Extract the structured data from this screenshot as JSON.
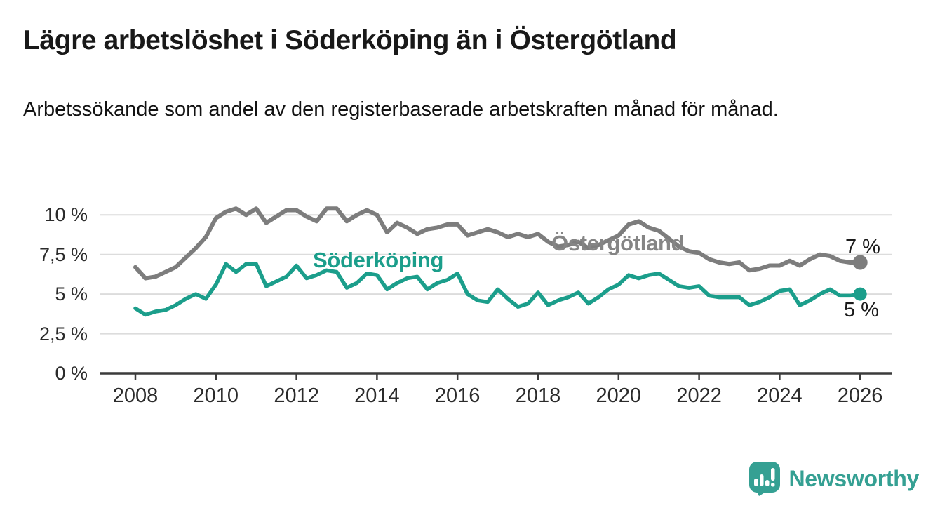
{
  "header": {
    "title": "Lägre arbetslöshet i Söderköping än i Östergötland",
    "subtitle": "Arbetssökande som andel av den registerbaserade arbetskraften månad för månad."
  },
  "chart_data": {
    "type": "line",
    "title": "Lägre arbetslöshet i Söderköping än i Östergötland",
    "subtitle": "Arbetssökande som andel av den registerbaserade arbetskraften månad för månad.",
    "unit": "%",
    "grid": true,
    "legend_position": "inline-labels",
    "x_start": 2008,
    "x_step": 0.25,
    "x_end": 2026,
    "xlim": [
      2007.1,
      2026.8
    ],
    "ylim": [
      0,
      11.3
    ],
    "x_ticks": [
      2008,
      2010,
      2012,
      2014,
      2016,
      2018,
      2020,
      2022,
      2024,
      2026
    ],
    "y_ticks": [
      {
        "value": 0,
        "label": "0 %"
      },
      {
        "value": 2.5,
        "label": "2,5 %"
      },
      {
        "value": 5,
        "label": "5 %"
      },
      {
        "value": 7.5,
        "label": "7,5 %"
      },
      {
        "value": 10,
        "label": "10 %"
      }
    ],
    "series": [
      {
        "name": "Östergötland",
        "color": "#7d7d7d",
        "label_color": "#858585",
        "end_label": "7 %",
        "end_value": 7.0,
        "values": [
          6.7,
          6.0,
          6.1,
          6.4,
          6.7,
          7.3,
          7.9,
          8.6,
          9.8,
          10.2,
          10.4,
          10.0,
          10.4,
          9.5,
          9.9,
          10.3,
          10.3,
          9.9,
          9.6,
          10.4,
          10.4,
          9.6,
          10.0,
          10.3,
          10.0,
          8.9,
          9.5,
          9.2,
          8.8,
          9.1,
          9.2,
          9.4,
          9.4,
          8.7,
          8.9,
          9.1,
          8.9,
          8.6,
          8.8,
          8.6,
          8.8,
          8.3,
          8.0,
          8.1,
          8.3,
          7.9,
          8.1,
          8.4,
          8.7,
          9.4,
          9.6,
          9.2,
          9.0,
          8.5,
          8.0,
          7.7,
          7.6,
          7.2,
          7.0,
          6.9,
          7.0,
          6.5,
          6.6,
          6.8,
          6.8,
          7.1,
          6.8,
          7.2,
          7.5,
          7.4,
          7.1,
          7.0,
          7.0
        ]
      },
      {
        "name": "Söderköping",
        "color": "#1b9e8b",
        "label_color": "#1b9e8b",
        "end_label": "5 %",
        "end_value": 5.0,
        "values": [
          4.1,
          3.7,
          3.9,
          4.0,
          4.3,
          4.7,
          5.0,
          4.7,
          5.6,
          6.9,
          6.4,
          6.9,
          6.9,
          5.5,
          5.8,
          6.1,
          6.8,
          6.0,
          6.2,
          6.5,
          6.4,
          5.4,
          5.7,
          6.3,
          6.2,
          5.3,
          5.7,
          6.0,
          6.1,
          5.3,
          5.7,
          5.9,
          6.3,
          5.0,
          4.6,
          4.5,
          5.3,
          4.7,
          4.2,
          4.4,
          5.1,
          4.3,
          4.6,
          4.8,
          5.1,
          4.4,
          4.8,
          5.3,
          5.6,
          6.2,
          6.0,
          6.2,
          6.3,
          5.9,
          5.5,
          5.4,
          5.5,
          4.9,
          4.8,
          4.8,
          4.8,
          4.3,
          4.5,
          4.8,
          5.2,
          5.3,
          4.3,
          4.6,
          5.0,
          5.3,
          4.9,
          4.9,
          5.0
        ]
      }
    ]
  },
  "footer": {
    "brand": "Newsworthy",
    "brand_color": "#35a093",
    "logo_icon": "speech-bubble-bar-chart-exclamation"
  }
}
